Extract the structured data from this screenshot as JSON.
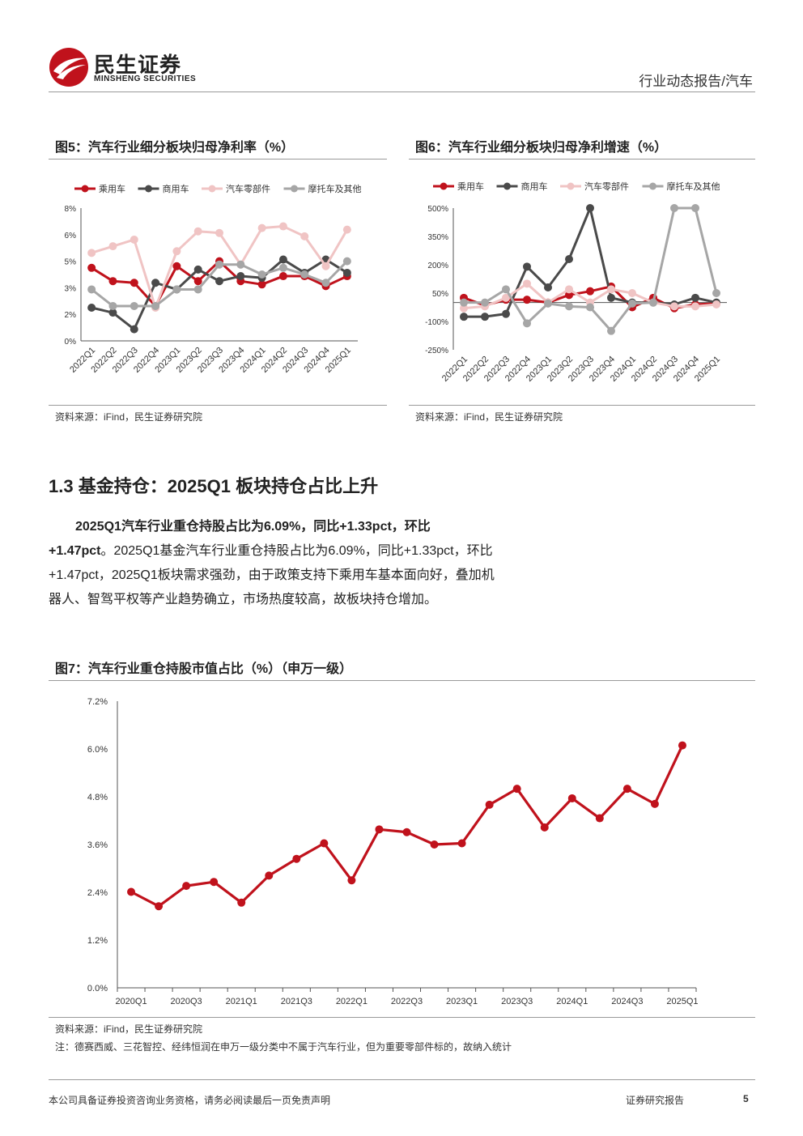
{
  "header": {
    "brand_cn": "民生证券",
    "brand_en": "MINSHENG SECURITIES",
    "report_type": "行业动态报告/汽车"
  },
  "fig5": {
    "title": "图5：汽车行业细分板块归母净利率（%）",
    "source": "资料来源：iFind，民生证券研究院"
  },
  "fig6": {
    "title": "图6：汽车行业细分板块归母净利增速（%）",
    "source": "资料来源：iFind，民生证券研究院"
  },
  "section": {
    "heading": "1.3 基金持仓：2025Q1 板块持仓占比上升",
    "para_bold_1": "2025Q1汽车行业重仓持股占比为6.09%，同比+1.33pct，环比",
    "para_bold_2": "+1.47pct",
    "para_rest_1": "。2025Q1基金汽车行业重仓持股占比为6.09%，同比+1.33pct，环比",
    "para_line_3": "+1.47pct，2025Q1板块需求强劲，由于政策支持下乘用车基本面向好，叠加机",
    "para_line_4": "器人、智驾平权等产业趋势确立，市场热度较高，故板块持仓增加。"
  },
  "fig7": {
    "title": "图7：汽车行业重仓持股市值占比（%）（申万一级）",
    "source": "资料来源：iFind，民生证券研究院",
    "note": "注：德赛西威、三花智控、经纬恒润在申万一级分类中不属于汽车行业，但为重要零部件标的，故纳入统计"
  },
  "footer": {
    "disclaimer": "本公司具备证券投资咨询业务资格，请务必阅读最后一页免责声明",
    "label": "证券研究报告",
    "page": "5"
  },
  "colors": {
    "red": "#c0121c",
    "dark": "#4a4a4a",
    "pink": "#f0c4c4",
    "gray": "#a6a6a6"
  },
  "chart_data": [
    {
      "type": "line",
      "id": "fig5",
      "categories": [
        "2022Q1",
        "2022Q2",
        "2022Q3",
        "2022Q4",
        "2023Q1",
        "2023Q2",
        "2023Q3",
        "2023Q4",
        "2024Q1",
        "2024Q2",
        "2024Q3",
        "2024Q4",
        "2025Q1"
      ],
      "y_ticks": [
        "0%",
        "2%",
        "3%",
        "5%",
        "6%",
        "8%"
      ],
      "ylim": [
        0,
        8
      ],
      "legend_position": "top",
      "series": [
        {
          "name": "乘用车",
          "color": "#c0121c",
          "values": [
            4.4,
            3.6,
            3.5,
            2.1,
            4.5,
            3.6,
            4.8,
            3.6,
            3.4,
            3.9,
            3.9,
            3.3,
            3.9
          ]
        },
        {
          "name": "商用车",
          "color": "#4a4a4a",
          "values": [
            2.0,
            1.7,
            0.7,
            3.5,
            3.1,
            4.3,
            3.6,
            3.9,
            3.8,
            4.9,
            4.1,
            4.9,
            4.1
          ]
        },
        {
          "name": "汽车零部件",
          "color": "#f0c4c4",
          "values": [
            5.3,
            5.7,
            6.1,
            2.0,
            5.4,
            6.6,
            6.5,
            4.6,
            6.8,
            6.9,
            6.3,
            4.5,
            6.7
          ]
        },
        {
          "name": "摩托车及其他",
          "color": "#a6a6a6",
          "values": [
            3.1,
            2.1,
            2.1,
            2.1,
            3.1,
            3.1,
            4.6,
            4.6,
            4.0,
            4.4,
            4.0,
            3.5,
            4.8
          ]
        }
      ]
    },
    {
      "type": "line",
      "id": "fig6",
      "categories": [
        "2022Q1",
        "2022Q2",
        "2022Q3",
        "2022Q4",
        "2023Q1",
        "2023Q2",
        "2023Q3",
        "2023Q4",
        "2024Q1",
        "2024Q2",
        "2024Q3",
        "2024Q4",
        "2025Q1"
      ],
      "y_ticks": [
        "-250%",
        "-100%",
        "50%",
        "200%",
        "350%",
        "500%"
      ],
      "ylim": [
        -250,
        500
      ],
      "legend_position": "top",
      "series": [
        {
          "name": "乘用车",
          "color": "#c0121c",
          "values": [
            25,
            -15,
            15,
            15,
            0,
            40,
            60,
            85,
            -25,
            25,
            -30,
            -10,
            -5
          ]
        },
        {
          "name": "商用车",
          "color": "#4a4a4a",
          "values": [
            -75,
            -75,
            -60,
            190,
            80,
            230,
            500,
            25,
            0,
            0,
            -10,
            25,
            0
          ]
        },
        {
          "name": "汽车零部件",
          "color": "#f0c4c4",
          "values": [
            -30,
            -20,
            25,
            100,
            0,
            70,
            0,
            70,
            50,
            0,
            -20,
            -20,
            -10
          ]
        },
        {
          "name": "摩托车及其他",
          "color": "#a6a6a6",
          "values": [
            0,
            0,
            70,
            -110,
            -5,
            -20,
            -25,
            -150,
            -5,
            0,
            500,
            500,
            50
          ]
        }
      ]
    },
    {
      "type": "line",
      "id": "fig7",
      "x_ticks": [
        "2020Q1",
        "2020Q3",
        "2021Q1",
        "2021Q3",
        "2022Q1",
        "2022Q3",
        "2023Q1",
        "2023Q3",
        "2024Q1",
        "2024Q3",
        "2025Q1"
      ],
      "y_ticks": [
        "0.0%",
        "1.2%",
        "2.4%",
        "3.6%",
        "4.8%",
        "6.0%",
        "7.2%"
      ],
      "ylim": [
        0,
        7.2
      ],
      "series": [
        {
          "color": "#c0121c",
          "values": [
            2.41,
            2.05,
            2.56,
            2.66,
            2.14,
            2.82,
            3.24,
            3.63,
            2.7,
            3.98,
            3.91,
            3.6,
            3.63,
            4.6,
            5.0,
            4.03,
            4.76,
            4.26,
            5.0,
            4.62,
            6.09
          ]
        }
      ]
    }
  ]
}
